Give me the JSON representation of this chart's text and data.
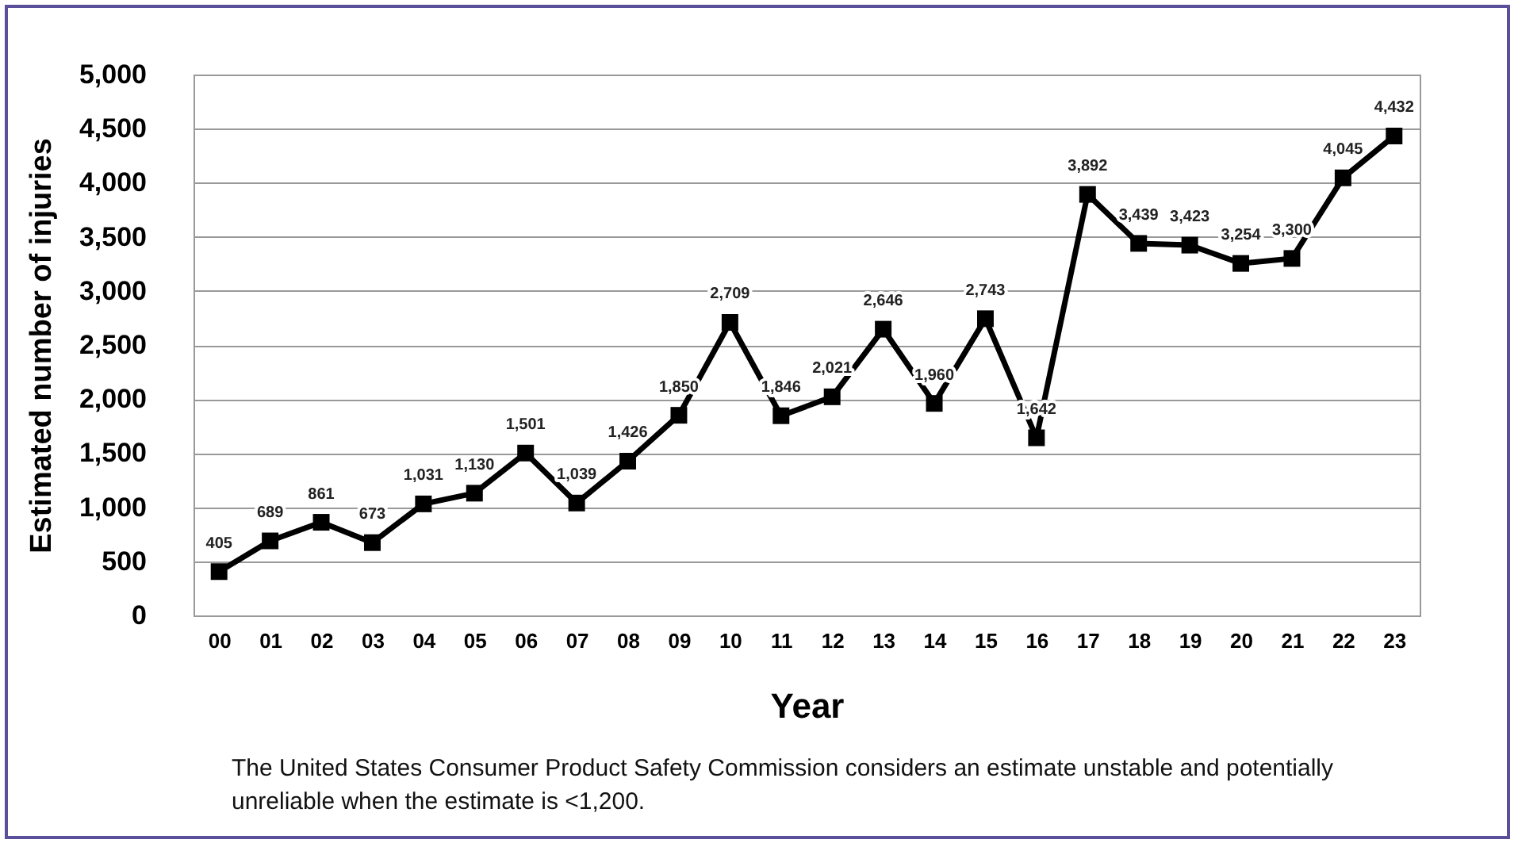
{
  "chart_data": {
    "type": "line",
    "xlabel": "Year",
    "ylabel": "Estimated number of injuries",
    "categories": [
      "00",
      "01",
      "02",
      "03",
      "04",
      "05",
      "06",
      "07",
      "08",
      "09",
      "10",
      "11",
      "12",
      "13",
      "14",
      "15",
      "16",
      "17",
      "18",
      "19",
      "20",
      "21",
      "22",
      "23"
    ],
    "series": [
      {
        "color": "#000000",
        "values": [
          405,
          689,
          861,
          673,
          1031,
          1130,
          1501,
          1039,
          1426,
          1850,
          2709,
          1846,
          2021,
          2646,
          1960,
          2743,
          1642,
          3892,
          3439,
          3423,
          3254,
          3300,
          4045,
          4432
        ],
        "value_labels": [
          "405",
          "689",
          "861",
          "673",
          "1,031",
          "1,130",
          "1,501",
          "1,039",
          "1,426",
          "1,850",
          "2,709",
          "1,846",
          "2,021",
          "2,646",
          "1,960",
          "2,743",
          "1,642",
          "3,892",
          "3,439",
          "3,423",
          "3,254",
          "3,300",
          "4,045",
          "4,432"
        ]
      }
    ],
    "ylim": [
      0,
      5000
    ],
    "yticks": [
      {
        "value": 0,
        "label": "0"
      },
      {
        "value": 500,
        "label": "500"
      },
      {
        "value": 1000,
        "label": "1,000"
      },
      {
        "value": 1500,
        "label": "1,500"
      },
      {
        "value": 2000,
        "label": "2,000"
      },
      {
        "value": 2500,
        "label": "2,500"
      },
      {
        "value": 3000,
        "label": "3,000"
      },
      {
        "value": 3500,
        "label": "3,500"
      },
      {
        "value": 4000,
        "label": "4,000"
      },
      {
        "value": 4500,
        "label": "4,500"
      },
      {
        "value": 5000,
        "label": "5,000"
      }
    ],
    "grid": "y",
    "marker": "square",
    "line_style": "solid",
    "annotations": [
      "The United States Consumer Product Safety Commission considers an estimate unstable and potentially unreliable when the estimate is <1,200."
    ]
  }
}
